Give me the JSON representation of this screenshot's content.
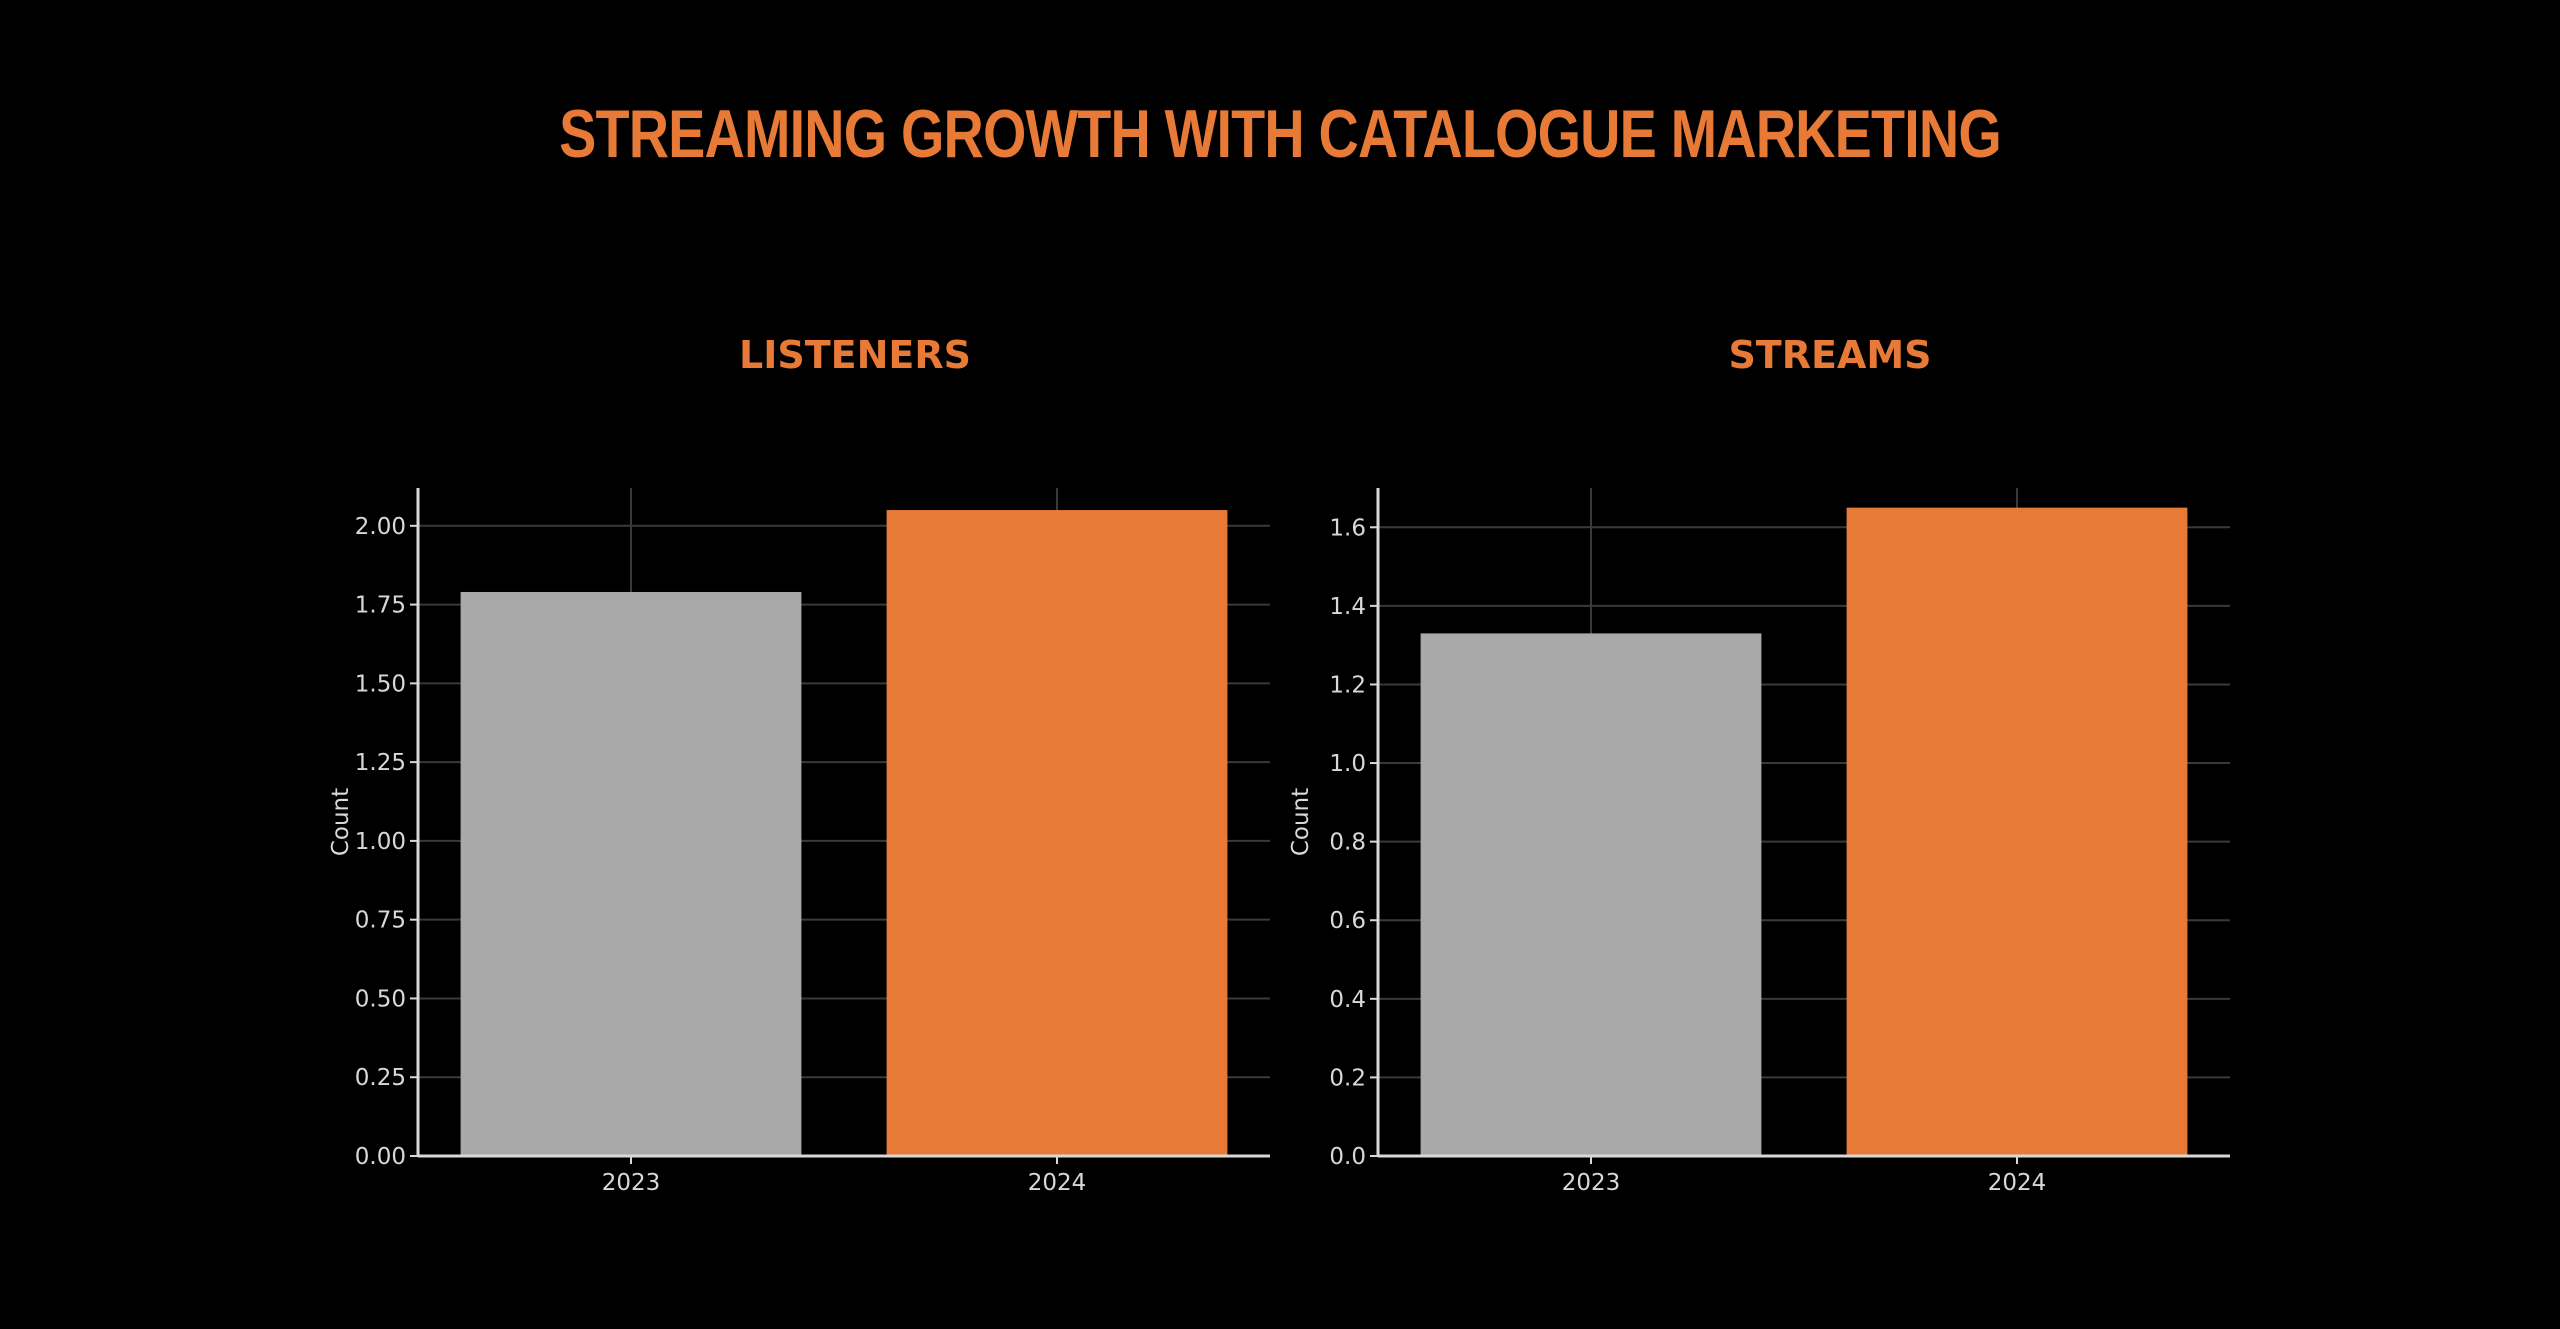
{
  "title": "STREAMING GROWTH WITH CATALOGUE MARKETING",
  "colors": {
    "background": "#000000",
    "accent": "#e87a37",
    "bar_2023": "#a9a9a9",
    "bar_2024": "#e87a37",
    "grid": "#3a3a3a",
    "axis": "#d8d8d8"
  },
  "chart_data": [
    {
      "type": "bar",
      "title": "LISTENERS",
      "categories": [
        "2023",
        "2024"
      ],
      "values": [
        1.79,
        2.05
      ],
      "bar_colors": [
        "#a9a9a9",
        "#e87a37"
      ],
      "ylabel": "Count",
      "xlabel": "",
      "ylim": [
        0,
        2.12
      ],
      "yticks": [
        0.0,
        0.25,
        0.5,
        0.75,
        1.0,
        1.25,
        1.5,
        1.75,
        2.0
      ],
      "ytick_labels": [
        "0.00",
        "0.25",
        "0.50",
        "0.75",
        "1.00",
        "1.25",
        "1.50",
        "1.75",
        "2.00"
      ],
      "grid": true
    },
    {
      "type": "bar",
      "title": "STREAMS",
      "categories": [
        "2023",
        "2024"
      ],
      "values": [
        1.33,
        1.65
      ],
      "bar_colors": [
        "#a9a9a9",
        "#e87a37"
      ],
      "ylabel": "Count",
      "xlabel": "",
      "ylim": [
        0,
        1.7
      ],
      "yticks": [
        0.0,
        0.2,
        0.4,
        0.6,
        0.8,
        1.0,
        1.2,
        1.4,
        1.6
      ],
      "ytick_labels": [
        "0.0",
        "0.2",
        "0.4",
        "0.6",
        "0.8",
        "1.0",
        "1.2",
        "1.4",
        "1.6"
      ],
      "grid": true
    }
  ]
}
